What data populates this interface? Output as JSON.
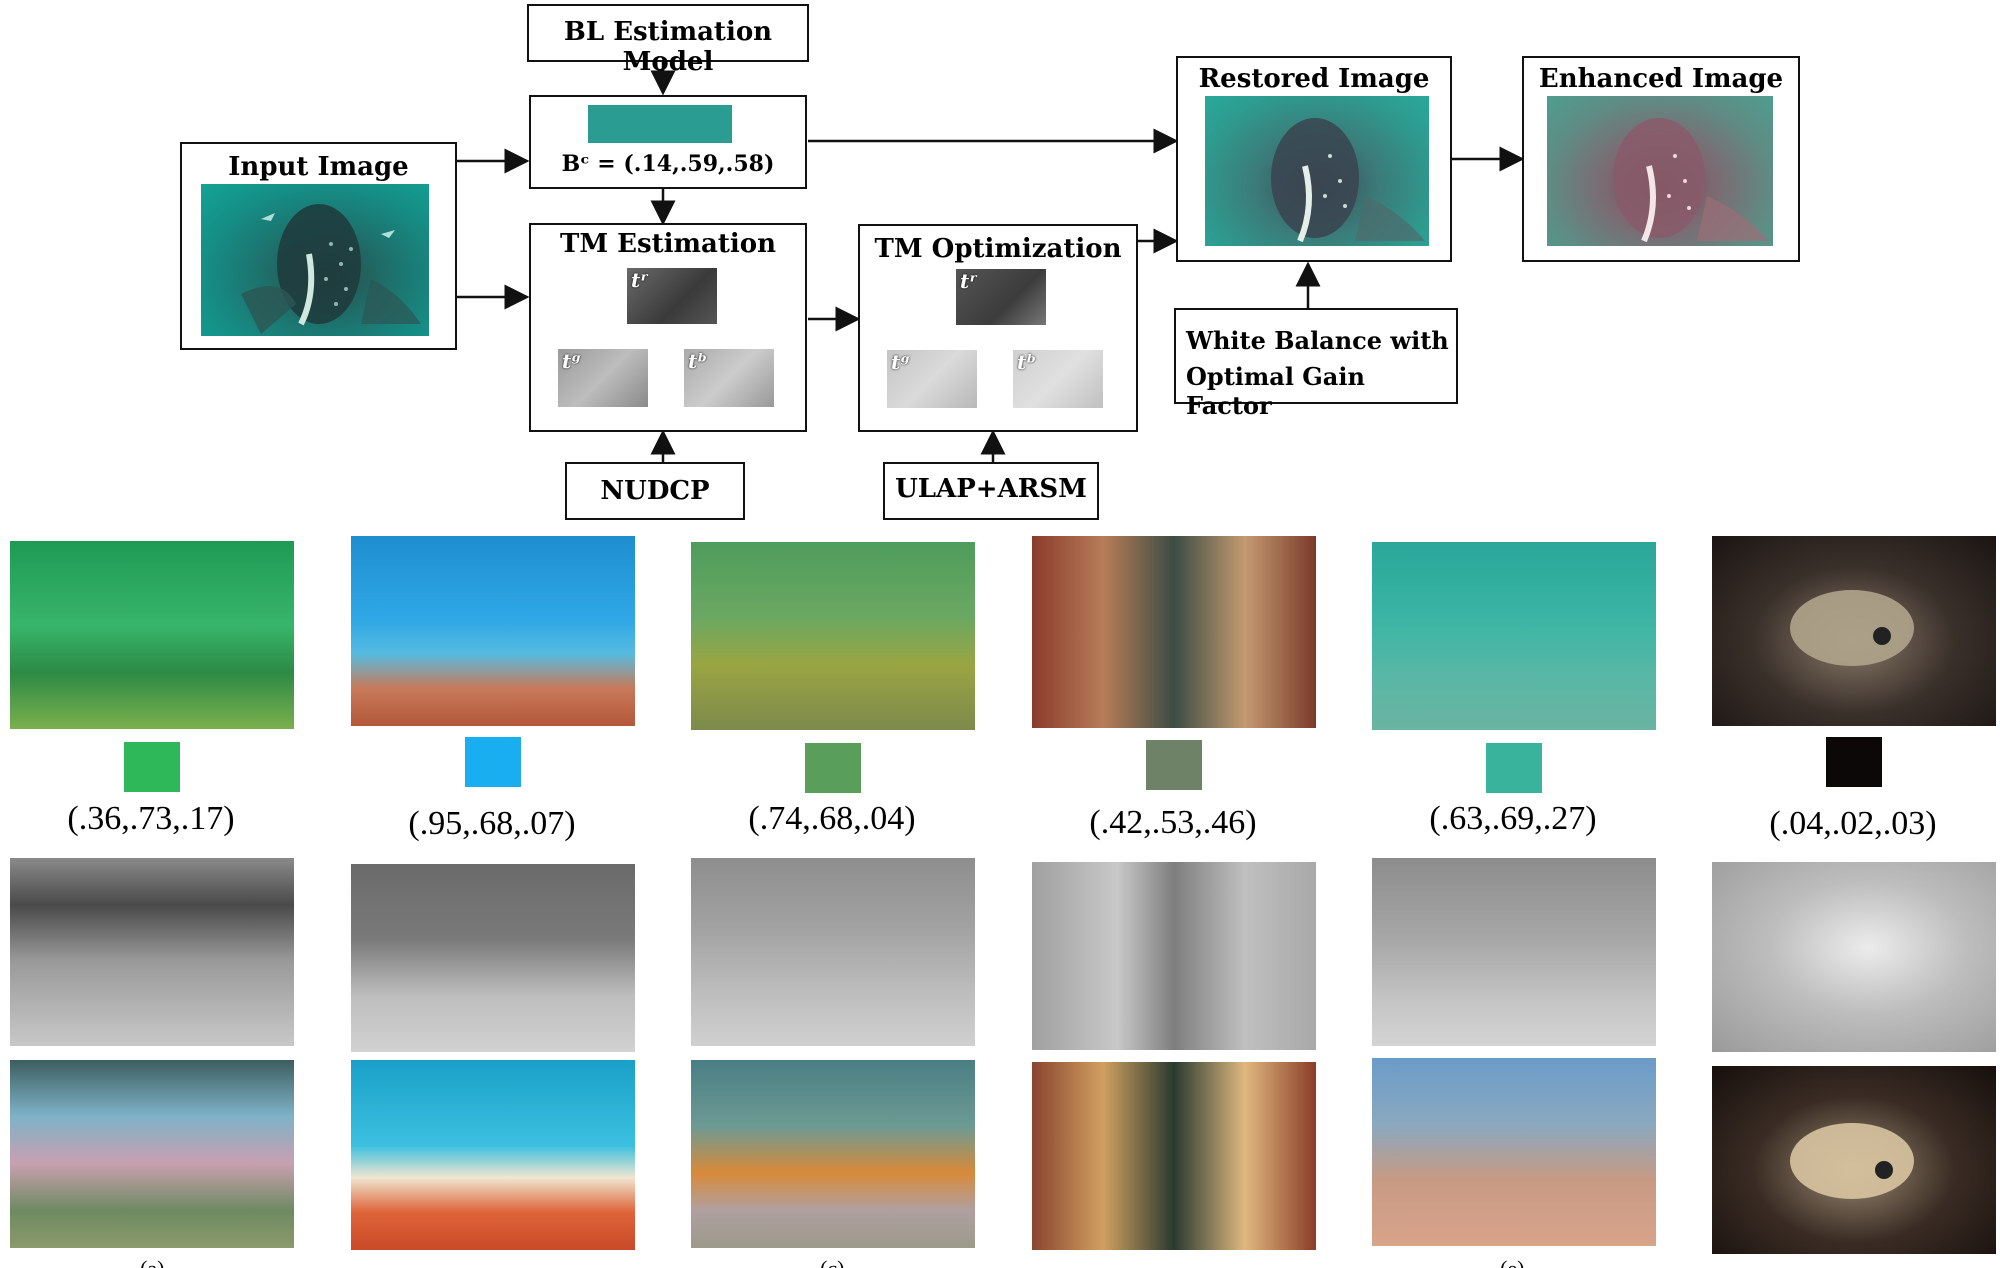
{
  "pipeline": {
    "bl_model": "BL Estimation Model",
    "input_image": "Input Image",
    "bl_formula": "Bᶜ = (.14,.59,.58)",
    "bl_swatch_color": "#2b9c92",
    "tm_estimation": "TM Estimation",
    "tm_optimization": "TM Optimization",
    "tm_labels": {
      "r": "tʳ",
      "g": "tᵍ",
      "b": "tᵇ"
    },
    "nudcp": "NUDCP",
    "ulap": "ULAP+ARSM",
    "restored_image": "Restored Image",
    "enhanced_image": "Enhanced Image",
    "white_balance_line1": "White Balance with",
    "white_balance_line2": "Optimal Gain Factor"
  },
  "examples": [
    {
      "bl_value": "(.36,.73,.17)",
      "swatch": "#2eb85a"
    },
    {
      "bl_value": "(.95,.68,.07)",
      "swatch": "#18aef0"
    },
    {
      "bl_value": "(.74,.68,.04)",
      "swatch": "#5a9e5c"
    },
    {
      "bl_value": "(.42,.53,.46)",
      "swatch": "#6e8268"
    },
    {
      "bl_value": "(.63,.69,.27)",
      "swatch": "#3ab39c"
    },
    {
      "bl_value": "(.04,.02,.03)",
      "swatch": "#0c0808"
    }
  ],
  "subcaptions": [
    "(a)",
    "(c)",
    "(e)"
  ]
}
